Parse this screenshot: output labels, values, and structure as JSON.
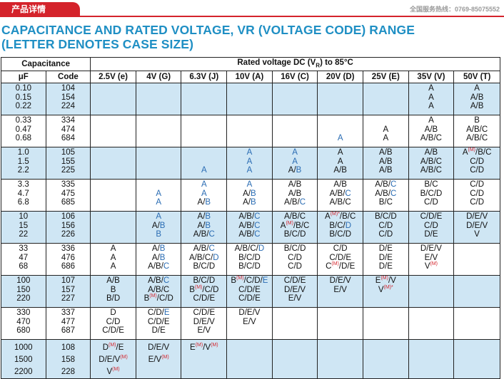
{
  "header": {
    "tab_label": "产品详情",
    "hotline": "全国服务热线：0769-85075552"
  },
  "title": {
    "line1": "CAPACITANCE AND RATED VOLTAGE, VR (VOLTAGE CODE) RANGE",
    "line2": "(LETTER DENOTES CASE SIZE)"
  },
  "table": {
    "capacitance_label": "Capacitance",
    "rated_voltage_label_pre": "Rated voltage DC (V",
    "rated_voltage_sub": "R",
    "rated_voltage_label_post": ") to 85°C",
    "uf_label": "μF",
    "code_label": "Code",
    "voltages": [
      "2.5V (e)",
      "4V (G)",
      "6.3V (J)",
      "10V (A)",
      "16V (C)",
      "20V (D)",
      "25V (E)",
      "35V (V)",
      "50V (T)"
    ],
    "rows": [
      {
        "uf": [
          "0.10",
          "0.15",
          "0.22"
        ],
        "code": [
          "104",
          "154",
          "224"
        ],
        "style": "blue",
        "cells": [
          "",
          "",
          "",
          "",
          "",
          "",
          "",
          "A|A|A",
          "A|A/B|A/B"
        ]
      },
      {
        "uf": [
          "0.33",
          "0.47",
          "0.68"
        ],
        "code": [
          "334",
          "474",
          "684"
        ],
        "style": "white",
        "cells": [
          "",
          "",
          "",
          "",
          "",
          "||#A",
          "|A|A",
          "A|A/B|A/B/C",
          "B|A/B/C|A/B/C"
        ]
      },
      {
        "uf": [
          "1.0",
          "1.5",
          "2.2"
        ],
        "code": [
          "105",
          "155",
          "225"
        ],
        "style": "blue",
        "cells": [
          "",
          "",
          "||#A",
          "#A|#A|#A",
          "#A|#A|A/#B",
          "A|A|A/B",
          "A/B|A/B|A/B",
          "A/B|A/B/C|A/B/C",
          "A^M/B/C|C/D|C/D"
        ]
      },
      {
        "uf": [
          "3.3",
          "4.7",
          "6.8"
        ],
        "code": [
          "335",
          "475",
          "685"
        ],
        "style": "white",
        "cells": [
          "",
          "|#A|#A",
          "#A|#A|A/#B",
          "#A|A/#B|A/#B",
          "A/B|A/B|A/B/#C",
          "A/B|A/B/#C|A/B/C",
          "A/B/#C|A/B/#C|B/C",
          "B/C|B/C/D|C/D",
          "C/D|C/D|C/D"
        ]
      },
      {
        "uf": [
          "10",
          "15",
          "22"
        ],
        "code": [
          "106",
          "156",
          "226"
        ],
        "style": "blue",
        "cells": [
          "",
          "#A|A/#B|#B",
          "A/#B|A/#B|A/B/#C",
          "A/B/#C|A/B/#C|A/B/#C",
          "A/B/C|A^M/B/C|B/C/D",
          "A^M*/B/C|B/C/#D|B/C/D",
          "B/C/D|C/D|C/D",
          "C/D/E|C/D|D/E",
          "D/E/V|D/E/V|V"
        ]
      },
      {
        "uf": [
          "33",
          "47",
          "68"
        ],
        "code": [
          "336",
          "476",
          "686"
        ],
        "style": "white",
        "cells": [
          "A|A|A",
          "A/#B|A/#B|A/B/#C",
          "A/B/#C|A/B/C/#D|B/C/D",
          "A/B/C/#D|B/C/D|B/C/D",
          "B/C/D|C/D|C/D",
          "C/D|C/D/E|C^M/D/E",
          "D/E|D/E|D/E",
          "D/E/V|E/V|V^M",
          ""
        ]
      },
      {
        "uf": [
          "100",
          "150",
          "220"
        ],
        "code": [
          "107",
          "157",
          "227"
        ],
        "style": "blue",
        "cells": [
          "A/B|B|B/D",
          "A/B/#C|A/B/C|B^M/C/D",
          "B/C/D|B^M/C/D|C/D/E",
          "B^M/C/D/#E|C/D/E|C/D/E",
          "C/D/E|D/E/V|E/V",
          "D/E/V|E/V",
          "E^M/V|V^M*",
          "",
          ""
        ]
      },
      {
        "uf": [
          "330",
          "470",
          "680"
        ],
        "code": [
          "337",
          "477",
          "687"
        ],
        "style": "white",
        "cells": [
          "D|C/D|C/D/E",
          "C/D/#E|C/D/E|D/E",
          "C/D/E|D/E/V|E/V",
          "D/E/V|E/V",
          "",
          "",
          "",
          "",
          ""
        ]
      },
      {
        "uf": [
          "1000",
          "1500",
          "2200"
        ],
        "code": [
          "108",
          "158",
          "228"
        ],
        "style": "blue",
        "cells": [
          "D^M/E|D/E/V^M|V^M",
          "D/E/V|E/V^M",
          "E^M/V^M",
          "",
          "",
          "",
          "",
          "",
          ""
        ]
      }
    ]
  }
}
